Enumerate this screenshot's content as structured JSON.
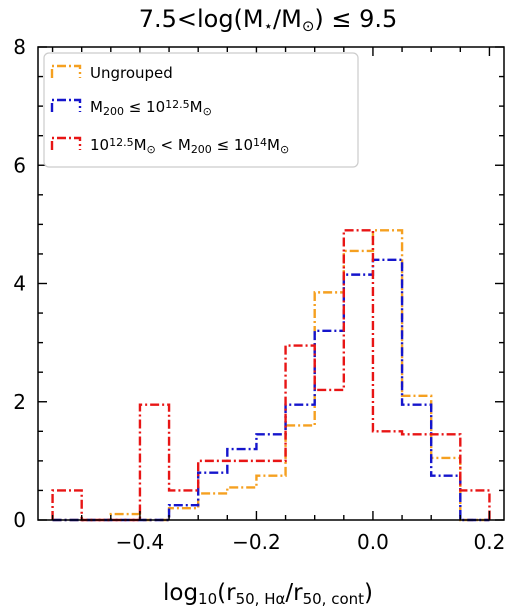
{
  "chart_data": {
    "type": "histogram-step",
    "title": "7.5<log(M⋆/M⊙) ≤ 9.5",
    "xlabel": "log10(r50, Hα/r50, cont)",
    "xlim": [
      -0.575,
      0.225
    ],
    "ylim": [
      0,
      8
    ],
    "x_ticks": [
      -0.4,
      -0.2,
      0.0,
      0.2
    ],
    "x_tick_labels": [
      "−0.4",
      "−0.2",
      "0.0",
      "0.2"
    ],
    "y_ticks": [
      0,
      2,
      4,
      6,
      8
    ],
    "y_tick_labels": [
      "0",
      "2",
      "4",
      "6",
      "8"
    ],
    "bin_edges": [
      -0.55,
      -0.5,
      -0.45,
      -0.4,
      -0.35,
      -0.3,
      -0.25,
      -0.2,
      -0.15,
      -0.1,
      -0.05,
      0.0,
      0.05,
      0.1,
      0.15,
      0.2
    ],
    "series": [
      {
        "name": "Ungrouped",
        "color": "#f5a020",
        "values": [
          0,
          0,
          0.1,
          0,
          0.2,
          0.45,
          0.55,
          0.75,
          1.6,
          3.85,
          4.55,
          4.9,
          2.1,
          1.05,
          0,
          0
        ]
      },
      {
        "name": "M200 ≤ 10^12.5 M⊙",
        "color": "#1515cc",
        "values": [
          0,
          0,
          0,
          0,
          0.25,
          0.8,
          1.2,
          1.45,
          1.95,
          3.2,
          4.15,
          4.4,
          1.95,
          0.75,
          0,
          0
        ]
      },
      {
        "name": "10^12.5 M⊙ < M200 ≤ 10^14 M⊙",
        "color": "#e81515",
        "values": [
          0.5,
          0,
          0,
          1.95,
          0.5,
          1.0,
          1.0,
          1.0,
          2.95,
          2.2,
          4.9,
          1.5,
          1.45,
          1.45,
          0.5,
          0
        ]
      }
    ],
    "legend_position": "top-left",
    "grid": false
  },
  "legend": {
    "entries": [
      {
        "main": "Ungrouped"
      },
      {
        "p1": "M",
        "s1": "200",
        "p2": " ≤ 10",
        "s2": "12.5",
        "p3": "M",
        "s3": "⊙"
      },
      {
        "p1": "10",
        "s1": "12.5",
        "p2": "M",
        "s2": "⊙",
        "p3": " < M",
        "s3": "200",
        "p4": " ≤ 10",
        "s4": "14",
        "p5": "M",
        "s5": "⊙"
      }
    ]
  },
  "title_parts": {
    "a": "7.5<log(M",
    "b": "⋆",
    "c": "/M",
    "d": "⊙",
    "e": ") ≤ 9.5"
  },
  "xlabel_parts": {
    "a": "log",
    "b": "10",
    "c": "(r",
    "d": "50, Hα",
    "e": "/r",
    "f": "50, cont",
    "g": ")"
  }
}
